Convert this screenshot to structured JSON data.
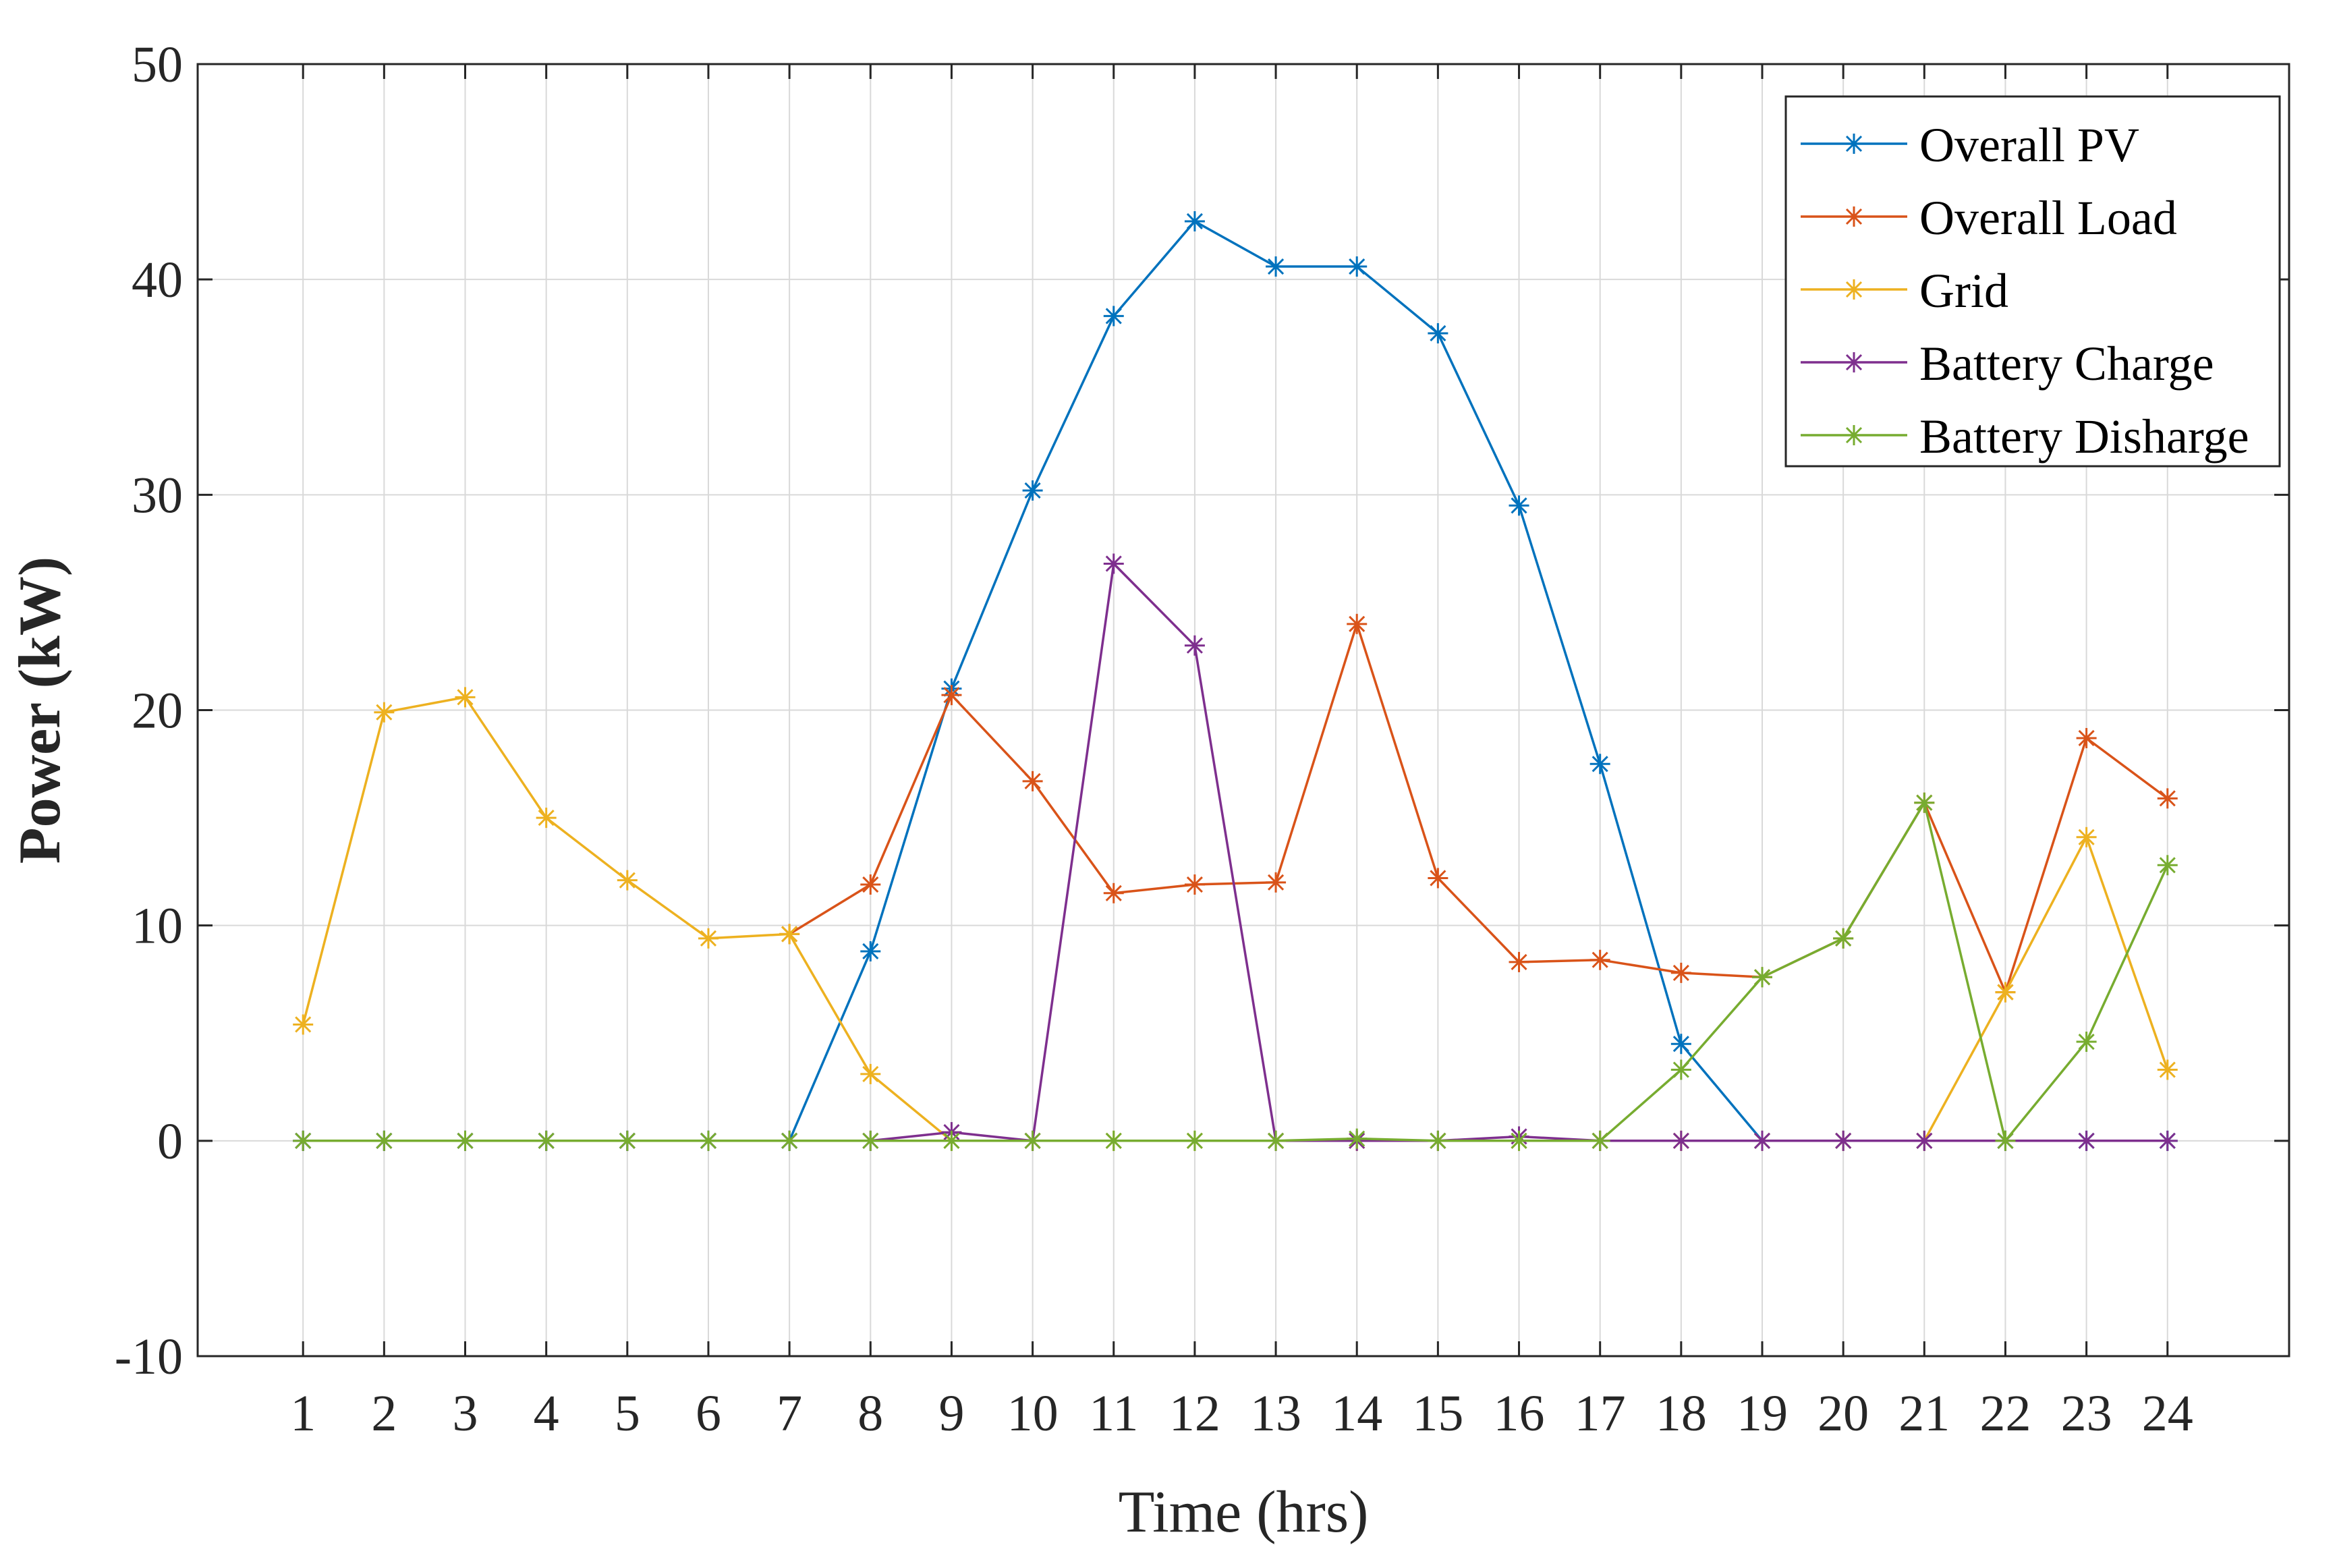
{
  "chart_data": {
    "type": "line",
    "xlabel": "Time (hrs)",
    "ylabel": "Power (kW)",
    "x": [
      1,
      2,
      3,
      4,
      5,
      6,
      7,
      8,
      9,
      10,
      11,
      12,
      13,
      14,
      15,
      16,
      17,
      18,
      19,
      20,
      21,
      22,
      23,
      24
    ],
    "xlim": [
      -0.3,
      25.5
    ],
    "ylim": [
      -10,
      50
    ],
    "y_ticks": [
      -10,
      0,
      10,
      20,
      30,
      40,
      50
    ],
    "grid": true,
    "legend_position": "top-right",
    "marker": "asterisk",
    "series": [
      {
        "name": "Overall PV",
        "color": "#0072BD",
        "values": [
          0,
          0,
          0,
          0,
          0,
          0,
          0,
          8.8,
          21.0,
          30.2,
          38.3,
          42.7,
          40.6,
          40.6,
          37.5,
          29.5,
          17.5,
          4.5,
          0,
          0,
          0,
          0,
          0,
          0
        ]
      },
      {
        "name": "Overall Load",
        "color": "#D95319",
        "values": [
          null,
          null,
          null,
          null,
          null,
          null,
          9.6,
          11.9,
          20.7,
          16.7,
          11.5,
          11.9,
          12.0,
          24.0,
          12.2,
          8.3,
          8.4,
          7.8,
          7.6,
          9.4,
          15.7,
          6.9,
          18.7,
          15.9
        ]
      },
      {
        "name": "Grid",
        "color": "#EDB120",
        "values": [
          5.4,
          19.9,
          20.6,
          15.0,
          12.1,
          9.4,
          9.6,
          3.1,
          0,
          0,
          0,
          0,
          0,
          0,
          0,
          0,
          0,
          0,
          0,
          0,
          0,
          6.9,
          14.1,
          3.3
        ]
      },
      {
        "name": "Battery Charge",
        "color": "#7E2F8E",
        "values": [
          0,
          0,
          0,
          0,
          0,
          0,
          0,
          0,
          0.4,
          0,
          26.8,
          23.0,
          0,
          0,
          0,
          0.2,
          0,
          0,
          0,
          0,
          0,
          0,
          0,
          0
        ]
      },
      {
        "name": "Battery Disharge",
        "color": "#77AC30",
        "values": [
          0,
          0,
          0,
          0,
          0,
          0,
          0,
          0,
          0,
          0,
          0,
          0,
          0,
          0.1,
          0,
          0,
          0,
          3.3,
          7.6,
          9.4,
          15.7,
          0,
          4.6,
          12.8
        ]
      }
    ]
  }
}
